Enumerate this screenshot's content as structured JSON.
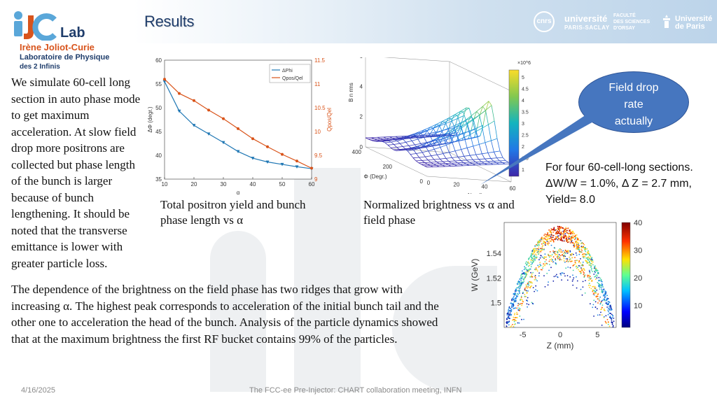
{
  "header": {
    "title": "Results",
    "logo": {
      "main": "IJC",
      "lab": "Lab",
      "line1": "Irène Joliot-Curie",
      "line2": "Laboratoire de Physique",
      "line3": "des 2 Infinis"
    },
    "partners": {
      "cnrs": "cnrs",
      "universite": "université",
      "paris_saclay": "PARIS-SACLAY",
      "faculte": [
        "FACULTÉ",
        "DES SCIENCES",
        "D'ORSAY"
      ],
      "up_line1": "Université",
      "up_line2": "de Paris"
    }
  },
  "left_paragraph": "We simulate 60-cell long section in auto phase mode to get maximum acceleration. At slow field drop more positrons are collected but phase length of the bunch is larger because of bunch lengthening. It should be noted that the transverse emittance is lower with greater particle loss.",
  "bottom_paragraph": "The dependence of the brightness on the field phase has two ridges that grow with increasing α. The highest peak corresponds to acceleration of the initial bunch tail and the other one to acceleration the head of the bunch. Analysis of the particle dynamics showed that at the maximum brightness the first RF bucket contains 99% of the particles.",
  "captions": {
    "chart1": "Total positron yield and bunch phase length vs α",
    "chart2": "Normalized brightness vs α and field phase"
  },
  "callout": {
    "lines": [
      "Field drop",
      "rate",
      "actually"
    ]
  },
  "right_note": {
    "line1": "For four 60-cell-long sections.",
    "line2": "ΔW/W = 1.0%, Δ Z = 2.7 mm,",
    "line3": "Yield= 8.0"
  },
  "footer": {
    "date": "4/16/2025",
    "text": "The FCC-ee Pre-Injector: CHART collaboration meeting, INFN"
  },
  "colors": {
    "title": "#1f3d6b",
    "phi": "#1f77b4",
    "q": "#d95319",
    "callout": "#4676bf"
  },
  "chart_data": [
    {
      "type": "line",
      "x": [
        10,
        15,
        20,
        25,
        30,
        35,
        40,
        45,
        50,
        55,
        60
      ],
      "xlabel": "α",
      "ylabel_left": "ΔΦ (degr.)",
      "ylabel_right": "Qpos/Qel",
      "xlim": [
        10,
        60
      ],
      "ylim_left": [
        35,
        60
      ],
      "ylim_right": [
        9,
        11.5
      ],
      "xticks": [
        10,
        20,
        30,
        40,
        50,
        60
      ],
      "yticks_left": [
        35,
        40,
        45,
        50,
        55,
        60
      ],
      "yticks_right": [
        9,
        9.5,
        10,
        10.5,
        11,
        11.5
      ],
      "legend": [
        "ΔPhi",
        "Qpos/Qel"
      ],
      "series": [
        {
          "name": "ΔPhi",
          "axis": "left",
          "values": [
            55.5,
            49.3,
            46.3,
            44.5,
            42.7,
            40.8,
            39.4,
            38.6,
            38.1,
            37.6,
            37.2
          ]
        },
        {
          "name": "Qpos/Qel",
          "axis": "right",
          "values": [
            11.1,
            10.8,
            10.65,
            10.45,
            10.27,
            10.06,
            9.85,
            9.68,
            9.52,
            9.38,
            9.23
          ]
        }
      ]
    },
    {
      "type": "surface",
      "xlabel": "Φ (Degr.)",
      "ylabel": "N cells",
      "zlabel": "B n rms",
      "z_multiplier": "×10^6",
      "colorbar_multiplier": "×10^6",
      "xticks": [
        0,
        200,
        400
      ],
      "yticks": [
        0,
        20,
        40,
        60
      ],
      "zticks": [
        0,
        2,
        4,
        6
      ],
      "colorbar_ticks": [
        1,
        1.5,
        2,
        2.5,
        3,
        3.5,
        4,
        4.5,
        5
      ]
    },
    {
      "type": "scatter",
      "xlabel": "Z (mm)",
      "ylabel": "W (GeV)",
      "xticks": [
        -5,
        0,
        5
      ],
      "yticks": [
        1.5,
        1.52,
        1.54
      ],
      "colorbar_ticks": [
        10,
        20,
        30,
        40
      ]
    }
  ]
}
